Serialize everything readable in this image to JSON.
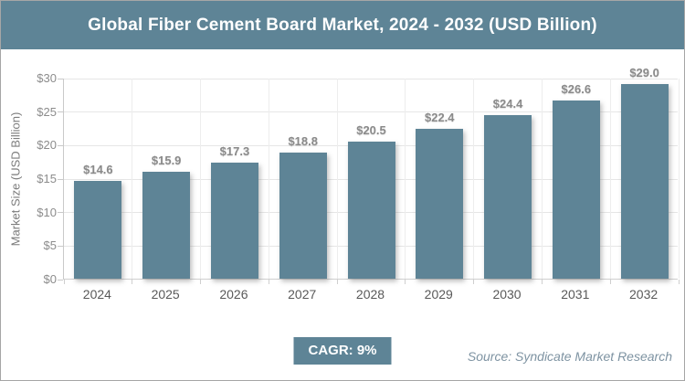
{
  "header": {
    "title": "Global Fiber Cement Board Market, 2024 - 2032 (USD Billion)"
  },
  "chart_data": {
    "type": "bar",
    "title": "Global Fiber Cement Board Market, 2024 - 2032 (USD Billion)",
    "categories": [
      "2024",
      "2025",
      "2026",
      "2027",
      "2028",
      "2029",
      "2030",
      "2031",
      "2032"
    ],
    "values": [
      14.6,
      15.9,
      17.3,
      18.8,
      20.5,
      22.4,
      24.4,
      26.6,
      29.0
    ],
    "data_labels": [
      "$14.6",
      "$15.9",
      "$17.3",
      "$18.8",
      "$20.5",
      "$22.4",
      "$24.4",
      "$26.6",
      "$29.0"
    ],
    "xlabel": "",
    "ylabel": "Market Size (USD Billion)",
    "ylim": [
      0,
      30
    ],
    "ytick_interval": 5,
    "ytick_labels": [
      "$0",
      "$5",
      "$10",
      "$15",
      "$20",
      "$25",
      "$30"
    ],
    "grid": true,
    "legend": false,
    "bar_color": "#5E8496"
  },
  "footer": {
    "cagr_label": "CAGR: 9%",
    "source": "Source: Syndicate Market Research"
  },
  "colors": {
    "accent": "#5E8496",
    "grid": "#E6E6E6",
    "axis": "#C9C9C9",
    "tick_label": "#8C8C8C",
    "data_label": "#8A8A8A",
    "x_label": "#595959",
    "source_text": "#7E93A2",
    "title_text": "#FFFFFF"
  }
}
